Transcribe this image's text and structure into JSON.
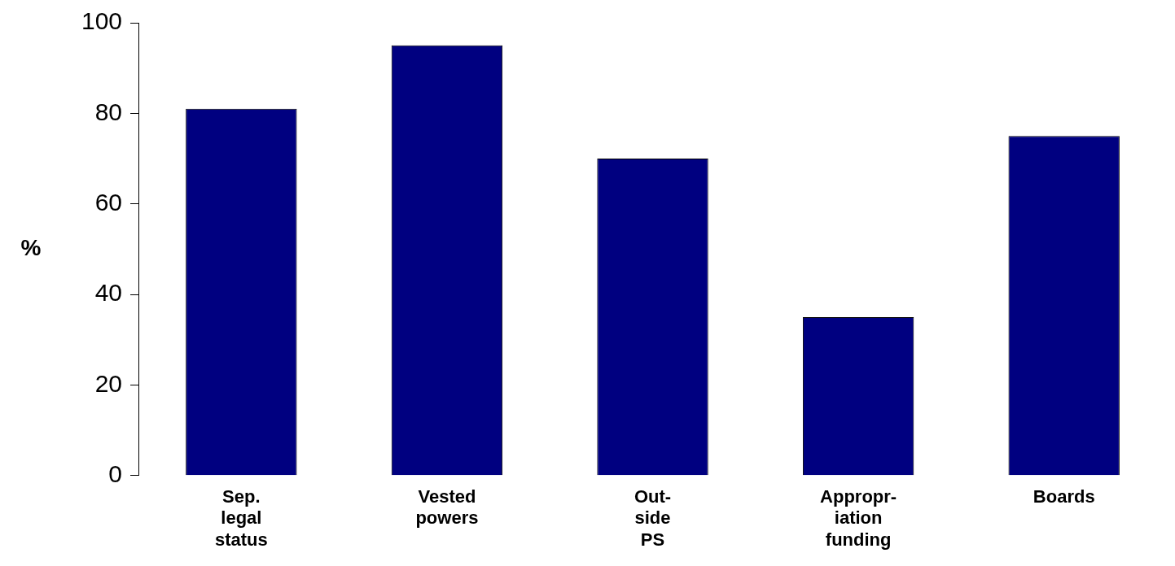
{
  "chart_data": {
    "type": "bar",
    "ylabel": "%",
    "categories": [
      "Sep. legal status",
      "Vested powers",
      "Out-side PS",
      "Appropr-iation funding",
      "Boards"
    ],
    "values": [
      81,
      95,
      70,
      35,
      75
    ],
    "color": "#000080",
    "ylim": [
      0,
      100
    ],
    "yticks": [
      0,
      20,
      40,
      60,
      80,
      100
    ],
    "grid": false,
    "legend": false
  }
}
